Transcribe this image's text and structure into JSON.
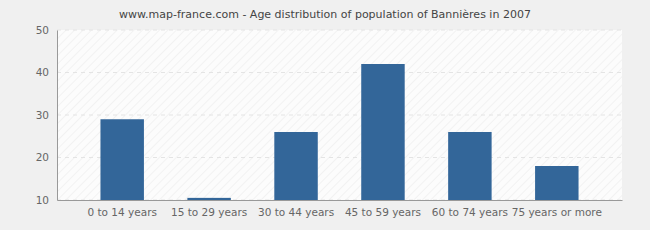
{
  "chart_data": {
    "type": "bar",
    "title": "www.map-france.com - Age distribution of population of Bannières in 2007",
    "categories": [
      "0 to 14 years",
      "15 to 29 years",
      "30 to 44 years",
      "45 to 59 years",
      "60 to 74 years",
      "75 years or more"
    ],
    "values": [
      29,
      10.5,
      26,
      42,
      26,
      18
    ],
    "color": "#336699",
    "ylim": [
      10,
      50
    ],
    "yticks": [
      10,
      20,
      30,
      40,
      50
    ],
    "grid": true
  }
}
